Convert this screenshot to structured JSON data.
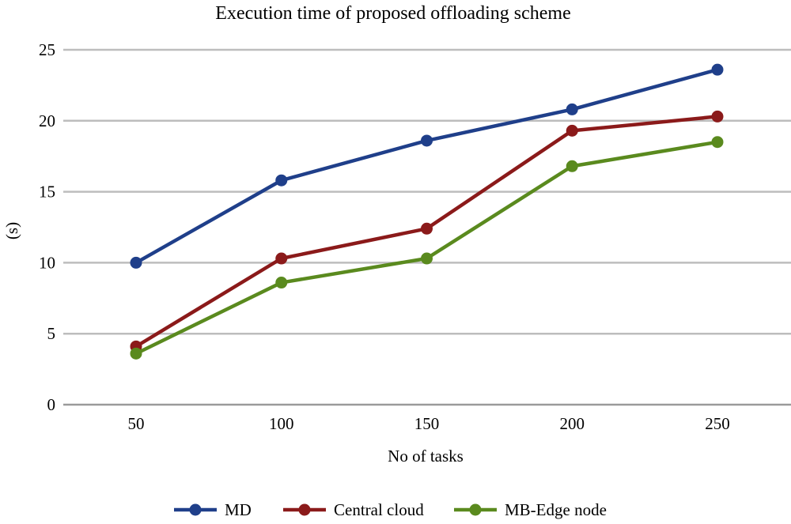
{
  "chart_data": {
    "type": "line",
    "title": "Execution time of proposed offloading scheme",
    "xlabel": "No of tasks",
    "ylabel": "(s)",
    "categories": [
      "50",
      "100",
      "150",
      "200",
      "250"
    ],
    "ylim": [
      0,
      25
    ],
    "yticks": [
      "0",
      "5",
      "10",
      "15",
      "20",
      "25"
    ],
    "grid": true,
    "legend_position": "bottom",
    "series": [
      {
        "name": "MD",
        "color": "#1f3f8a",
        "values": [
          10.0,
          15.8,
          18.6,
          20.8,
          23.6
        ]
      },
      {
        "name": "Central cloud",
        "color": "#8b1a1a",
        "values": [
          4.1,
          10.3,
          12.4,
          19.3,
          20.3
        ]
      },
      {
        "name": "MB-Edge node",
        "color": "#5a8a1e",
        "values": [
          3.6,
          8.6,
          10.3,
          16.8,
          18.5
        ]
      }
    ]
  }
}
